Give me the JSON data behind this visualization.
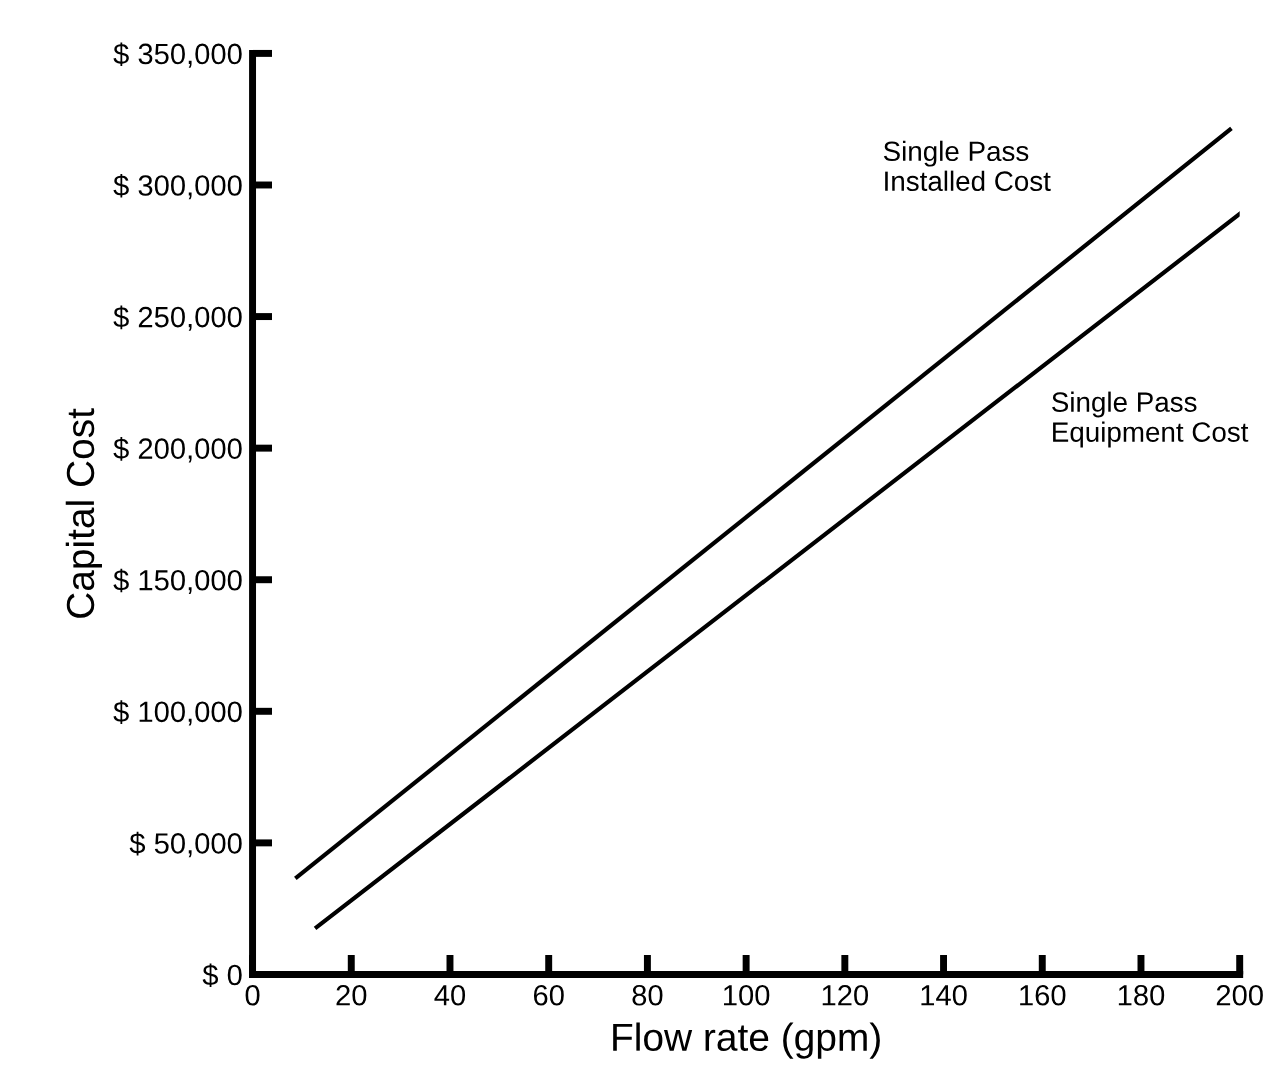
{
  "chart_data": {
    "type": "line",
    "xlabel": "Flow rate (gpm)",
    "ylabel": "Capital Cost",
    "xlim": [
      0,
      200
    ],
    "ylim": [
      0,
      350000
    ],
    "xticks": [
      0,
      20,
      40,
      60,
      80,
      100,
      120,
      140,
      160,
      180,
      200
    ],
    "yticks": [
      {
        "value": 0,
        "label": "$ 0"
      },
      {
        "value": 50000,
        "label": "$ 50,000"
      },
      {
        "value": 100000,
        "label": "$ 100,000"
      },
      {
        "value": 150000,
        "label": "$ 150,000"
      },
      {
        "value": 200000,
        "label": "$ 200,000"
      },
      {
        "value": 250000,
        "label": "$ 250,000"
      },
      {
        "value": 300000,
        "label": "$ 300,000"
      },
      {
        "value": 350000,
        "label": "$ 350,000"
      }
    ],
    "grid": false,
    "legend": false,
    "marker": "none",
    "line_style": "solid",
    "series": [
      {
        "name": "Single Pass\nInstalled Cost",
        "color": "#000000",
        "x": [
          9,
          198
        ],
        "values": [
          37000,
          321000
        ]
      },
      {
        "name": "Single Pass\nEquipment Cost",
        "color": "#000000",
        "x": [
          13,
          200
        ],
        "values": [
          18000,
          289000
        ]
      }
    ]
  }
}
